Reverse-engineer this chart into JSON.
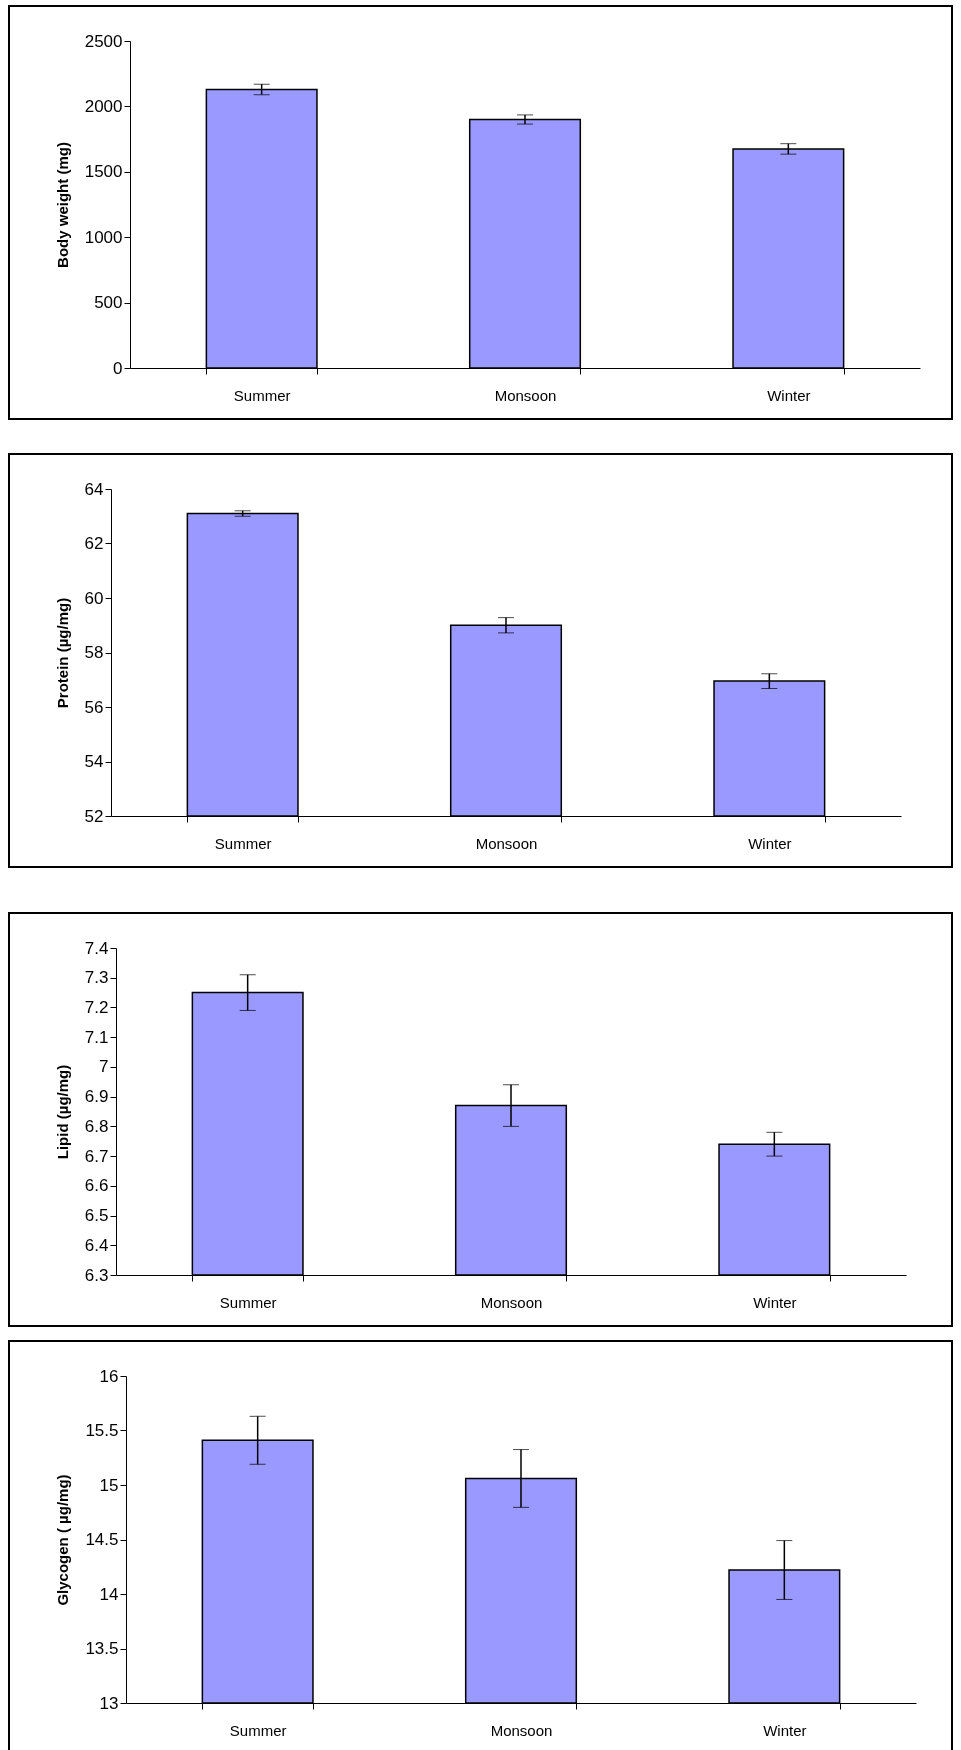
{
  "chart_data": [
    {
      "type": "bar",
      "ylabel": "Body weight (mg)",
      "categories": [
        "Summer",
        "Monsoon",
        "Winter"
      ],
      "values": [
        2130,
        1900,
        1675
      ],
      "errors": [
        40,
        35,
        40
      ],
      "color": "#9999ff",
      "ylim": [
        0,
        2500
      ],
      "yticks": [
        0,
        500,
        1000,
        1500,
        2000,
        2500
      ]
    },
    {
      "type": "bar",
      "ylabel": "Protein (µg/mg)",
      "categories": [
        "Summer",
        "Monsoon",
        "Winter"
      ],
      "values": [
        63.1,
        59.0,
        56.95
      ],
      "errors": [
        0.1,
        0.28,
        0.27
      ],
      "color": "#9999ff",
      "ylim": [
        52,
        64
      ],
      "yticks": [
        52,
        54,
        56,
        58,
        60,
        62,
        64
      ]
    },
    {
      "type": "bar",
      "ylabel": "Lipid (µg/mg)",
      "categories": [
        "Summer",
        "Monsoon",
        "Winter"
      ],
      "values": [
        7.25,
        6.87,
        6.74
      ],
      "errors": [
        0.06,
        0.07,
        0.04
      ],
      "color": "#9999ff",
      "ylim": [
        6.3,
        7.4
      ],
      "yticks": [
        6.3,
        6.4,
        6.5,
        6.6,
        6.7,
        6.8,
        6.9,
        7,
        7.1,
        7.2,
        7.3,
        7.4
      ]
    },
    {
      "type": "bar",
      "ylabel": "Glycogen ( µg/mg)",
      "categories": [
        "Summer",
        "Monsoon",
        "Winter"
      ],
      "values": [
        15.41,
        15.06,
        14.22
      ],
      "errors": [
        0.22,
        0.265,
        0.27
      ],
      "color": "#9999ff",
      "ylim": [
        13,
        16
      ],
      "yticks": [
        13,
        13.5,
        14,
        14.5,
        15,
        15.5,
        16
      ]
    }
  ]
}
